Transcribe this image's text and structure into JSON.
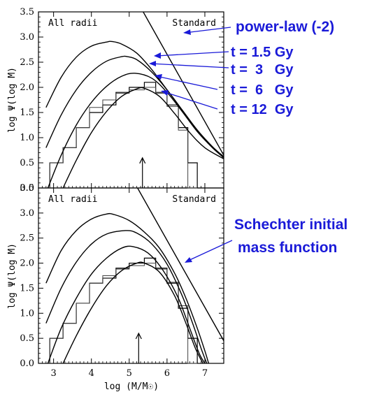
{
  "chart_data": [
    {
      "type": "line",
      "panel": "top",
      "corner_left": "All radii",
      "corner_right": "Standard",
      "ylabel": "log Ψ(log M)",
      "xlim": [
        2.6,
        7.5
      ],
      "ylim": [
        0.0,
        3.5
      ],
      "yticks": [
        "0.0",
        "0.5",
        "1.0",
        "1.5",
        "2.0",
        "2.5",
        "3.0",
        "3.5"
      ],
      "series": [
        {
          "name": "power-law (-2)",
          "x": [
            5.37,
            7.5
          ],
          "y": [
            3.5,
            0.65
          ]
        },
        {
          "name": "t = 1.5 Gy",
          "x": [
            2.8,
            3.2,
            3.6,
            4.0,
            4.4,
            4.55,
            4.8,
            5.2,
            5.6,
            6.0,
            6.4,
            6.8,
            7.2,
            7.5
          ],
          "y": [
            1.6,
            2.2,
            2.6,
            2.82,
            2.9,
            2.91,
            2.86,
            2.68,
            2.35,
            1.95,
            1.55,
            1.15,
            0.82,
            0.62
          ]
        },
        {
          "name": "t = 3 Gy",
          "x": [
            2.8,
            3.2,
            3.6,
            4.0,
            4.4,
            4.8,
            4.95,
            5.2,
            5.6,
            6.0,
            6.4,
            6.8,
            7.2,
            7.5
          ],
          "y": [
            0.8,
            1.45,
            1.95,
            2.3,
            2.52,
            2.61,
            2.61,
            2.55,
            2.3,
            1.95,
            1.55,
            1.15,
            0.82,
            0.62
          ]
        },
        {
          "name": "t = 6 Gy",
          "x": [
            2.85,
            3.2,
            3.6,
            4.0,
            4.4,
            4.8,
            5.15,
            5.6,
            6.0,
            6.4,
            6.8,
            7.2,
            7.5
          ],
          "y": [
            0.0,
            0.65,
            1.25,
            1.7,
            2.02,
            2.22,
            2.28,
            2.18,
            1.9,
            1.52,
            1.12,
            0.8,
            0.6
          ]
        },
        {
          "name": "t = 12 Gy",
          "x": [
            3.25,
            3.6,
            4.0,
            4.4,
            4.8,
            5.2,
            5.4,
            5.8,
            6.2,
            6.6,
            7.0,
            7.5
          ],
          "y": [
            0.0,
            0.55,
            1.1,
            1.52,
            1.82,
            1.97,
            1.98,
            1.82,
            1.48,
            1.1,
            0.8,
            0.58
          ]
        }
      ],
      "histograms": [
        {
          "edges": [
            2.9,
            3.25,
            3.6,
            3.95,
            4.3,
            4.65,
            5.0,
            5.4,
            5.7,
            6.0,
            6.3,
            6.55,
            6.8
          ],
          "values": [
            0.5,
            0.8,
            1.2,
            1.5,
            1.65,
            1.9,
            2.0,
            2.1,
            1.9,
            1.65,
            1.2,
            0.5
          ]
        },
        {
          "edges": [
            2.9,
            3.25,
            3.6,
            3.95,
            4.3,
            4.65,
            5.0,
            5.4,
            5.7,
            6.0,
            6.3,
            6.55,
            6.8
          ],
          "values": [
            0.5,
            0.8,
            1.2,
            1.6,
            1.75,
            1.88,
            1.95,
            2.0,
            1.88,
            1.62,
            1.15,
            0.0
          ]
        }
      ],
      "arrow_at_x": 5.35,
      "annotations": [
        "power-law (-2)",
        "t = 1.5 Gy",
        "t =  3   Gy",
        "t =  6   Gy",
        "t = 12  Gy"
      ]
    },
    {
      "type": "line",
      "panel": "bottom",
      "corner_left": "All radii",
      "corner_right": "Standard",
      "xlabel": "log (M/M☉)",
      "ylabel": "log Ψ(log M)",
      "xlim": [
        2.6,
        7.5
      ],
      "ylim": [
        0.0,
        3.5
      ],
      "xticks": [
        "3",
        "4",
        "5",
        "6",
        "7"
      ],
      "yticks": [
        "0.0",
        "0.5",
        "1.0",
        "1.5",
        "2.0",
        "2.5",
        "3.0",
        "3.5"
      ],
      "series": [
        {
          "name": "power-law (-2)",
          "x": [
            5.22,
            7.5
          ],
          "y": [
            3.5,
            0.45
          ]
        },
        {
          "x": [
            2.8,
            3.2,
            3.6,
            4.0,
            4.4,
            4.6,
            5.0,
            5.4,
            5.8,
            6.2,
            6.5,
            6.8,
            7.0,
            7.1
          ],
          "y": [
            1.6,
            2.25,
            2.65,
            2.88,
            2.98,
            2.97,
            2.85,
            2.62,
            2.3,
            1.8,
            1.3,
            0.7,
            0.25,
            0.0
          ]
        },
        {
          "x": [
            2.8,
            3.2,
            3.6,
            4.0,
            4.4,
            4.9,
            5.2,
            5.6,
            6.0,
            6.4,
            6.7,
            6.9,
            7.05
          ],
          "y": [
            0.8,
            1.5,
            2.02,
            2.38,
            2.58,
            2.65,
            2.6,
            2.38,
            1.98,
            1.35,
            0.75,
            0.3,
            0.0
          ]
        },
        {
          "x": [
            2.85,
            3.2,
            3.6,
            4.0,
            4.4,
            4.8,
            5.1,
            5.5,
            5.9,
            6.3,
            6.6,
            6.85,
            7.0
          ],
          "y": [
            0.0,
            0.7,
            1.3,
            1.78,
            2.1,
            2.3,
            2.33,
            2.2,
            1.85,
            1.3,
            0.7,
            0.2,
            0.0
          ]
        },
        {
          "x": [
            3.25,
            3.6,
            4.0,
            4.4,
            4.8,
            5.2,
            5.4,
            5.8,
            6.2,
            6.5,
            6.75,
            6.95
          ],
          "y": [
            0.0,
            0.55,
            1.1,
            1.55,
            1.85,
            2.0,
            2.0,
            1.82,
            1.35,
            0.8,
            0.3,
            0.0
          ]
        }
      ],
      "histograms": [
        {
          "edges": [
            2.9,
            3.25,
            3.6,
            3.95,
            4.3,
            4.65,
            5.0,
            5.4,
            5.7,
            6.0,
            6.3,
            6.55,
            6.8
          ],
          "values": [
            0.5,
            0.8,
            1.2,
            1.6,
            1.7,
            1.9,
            2.0,
            2.1,
            1.9,
            1.6,
            1.1,
            0.5
          ]
        },
        {
          "edges": [
            2.9,
            3.25,
            3.6,
            3.95,
            4.3,
            4.65,
            5.0,
            5.4,
            5.7,
            6.0,
            6.3,
            6.55,
            6.8
          ],
          "values": [
            0.5,
            0.8,
            1.2,
            1.6,
            1.75,
            1.88,
            1.95,
            2.0,
            1.88,
            1.62,
            1.15,
            0.0
          ]
        }
      ],
      "arrow_at_x": 5.25,
      "annotations": [
        "Schechter initial",
        "mass function"
      ]
    }
  ]
}
